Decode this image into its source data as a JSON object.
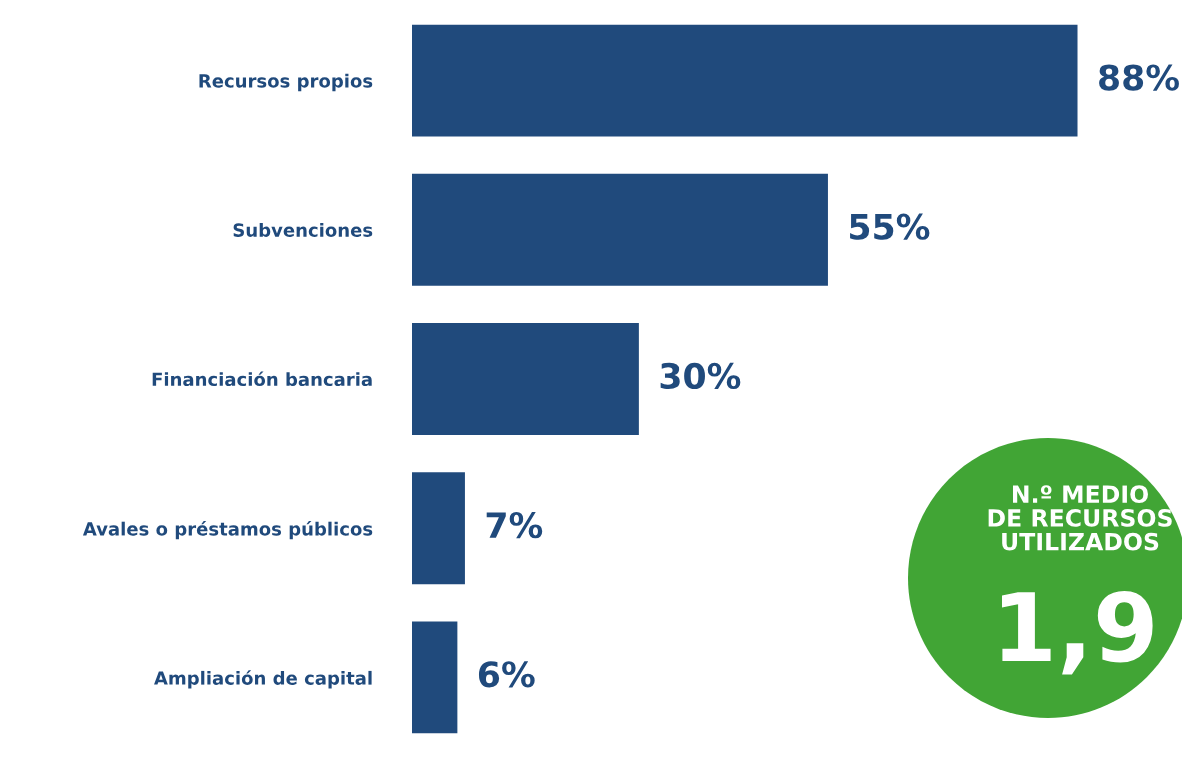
{
  "chart_data": {
    "type": "bar",
    "orientation": "horizontal",
    "categories": [
      "Recursos propios",
      "Subvenciones",
      "Financiación bancaria",
      "Avales o préstamos públicos",
      "Ampliación de capital"
    ],
    "values": [
      88,
      55,
      30,
      7,
      6
    ],
    "value_labels": [
      "88%",
      "55%",
      "30%",
      "7%",
      "6%"
    ],
    "color": "#204a7c",
    "annotations": [
      "N.º MEDIO\nDE RECURSOS\nUTILIZADOS",
      "1,9"
    ]
  }
}
